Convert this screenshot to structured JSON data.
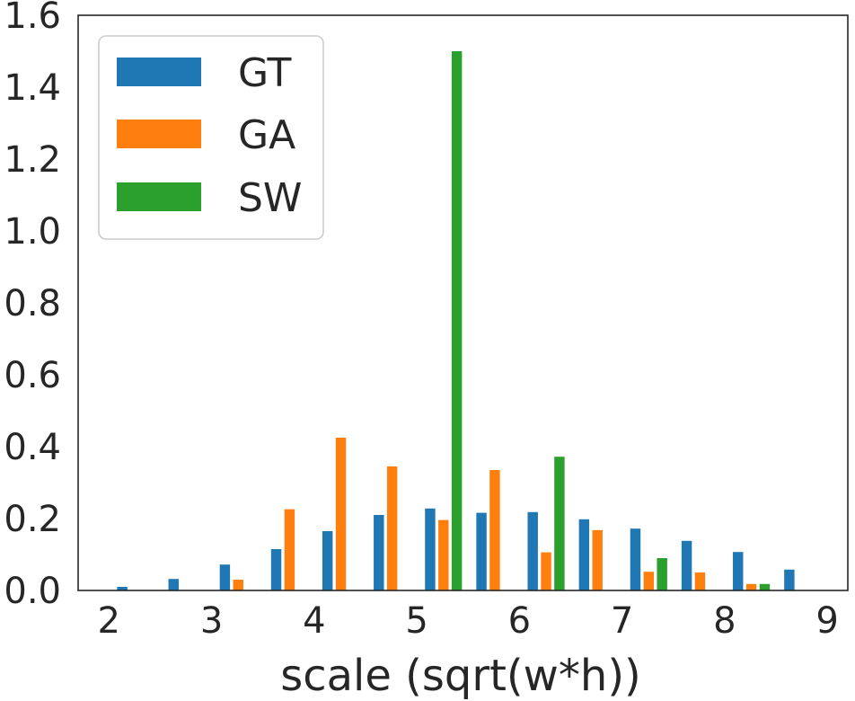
{
  "chart_data": {
    "type": "bar",
    "title": "",
    "xlabel": "scale (sqrt(w*h))",
    "ylabel": "",
    "xlim": [
      1.7,
      9.2
    ],
    "ylim": [
      0,
      1.6
    ],
    "xticks": [
      "2",
      "3",
      "4",
      "5",
      "6",
      "7",
      "8",
      "9"
    ],
    "yticks": [
      "0.0",
      "0.2",
      "0.4",
      "0.6",
      "0.8",
      "1.0",
      "1.2",
      "1.4",
      "1.6"
    ],
    "grid": false,
    "legend_position": "top-left",
    "bin_width": 0.1,
    "series": [
      {
        "name": "GT",
        "color": "#1f77b4",
        "x": [
          2.13,
          2.63,
          3.13,
          3.63,
          4.13,
          4.63,
          5.13,
          5.63,
          6.13,
          6.63,
          7.13,
          7.63,
          8.13,
          8.63
        ],
        "values": [
          0.01,
          0.032,
          0.072,
          0.115,
          0.165,
          0.21,
          0.228,
          0.216,
          0.218,
          0.198,
          0.172,
          0.138,
          0.107,
          0.058
        ]
      },
      {
        "name": "GA",
        "color": "#ff7f0e",
        "x": [
          3.26,
          3.76,
          4.26,
          4.76,
          5.26,
          5.76,
          6.26,
          6.76,
          7.26,
          7.76,
          8.26
        ],
        "values": [
          0.03,
          0.226,
          0.425,
          0.345,
          0.196,
          0.335,
          0.106,
          0.168,
          0.052,
          0.05,
          0.018
        ]
      },
      {
        "name": "SW",
        "color": "#2ca02c",
        "x": [
          5.39,
          6.39,
          7.39,
          8.39
        ],
        "values": [
          1.5,
          0.372,
          0.09,
          0.018
        ]
      }
    ]
  }
}
